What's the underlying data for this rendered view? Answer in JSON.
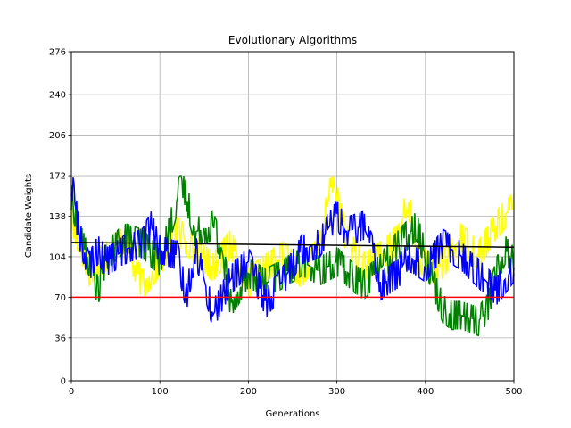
{
  "chart_data": {
    "type": "line",
    "title": "Evolutionary Algorithms",
    "xlabel": "Generations",
    "ylabel": "Candidate Weights",
    "xlim": [
      0,
      500
    ],
    "ylim": [
      0,
      276
    ],
    "x_ticks": [
      0,
      100,
      200,
      300,
      400,
      500
    ],
    "y_ticks": [
      0,
      36,
      70,
      104,
      138,
      172,
      206,
      240,
      276
    ],
    "grid": true,
    "legend": "none",
    "series": [
      {
        "color": "#ffff00",
        "style": "noisy",
        "points": [
          [
            0,
            138
          ],
          [
            20,
            92
          ],
          [
            40,
            105
          ],
          [
            60,
            118
          ],
          [
            80,
            80
          ],
          [
            100,
            100
          ],
          [
            120,
            125
          ],
          [
            140,
            110
          ],
          [
            160,
            95
          ],
          [
            180,
            115
          ],
          [
            200,
            82
          ],
          [
            220,
            95
          ],
          [
            240,
            105
          ],
          [
            260,
            90
          ],
          [
            280,
            110
          ],
          [
            295,
            170
          ],
          [
            310,
            120
          ],
          [
            330,
            95
          ],
          [
            350,
            105
          ],
          [
            370,
            120
          ],
          [
            380,
            155
          ],
          [
            390,
            105
          ],
          [
            410,
            92
          ],
          [
            420,
            98
          ],
          [
            440,
            120
          ],
          [
            460,
            105
          ],
          [
            480,
            130
          ],
          [
            490,
            140
          ],
          [
            500,
            145
          ]
        ]
      },
      {
        "color": "#008000",
        "style": "noisy",
        "points": [
          [
            0,
            155
          ],
          [
            10,
            120
          ],
          [
            20,
            100
          ],
          [
            30,
            75
          ],
          [
            40,
            105
          ],
          [
            60,
            120
          ],
          [
            80,
            115
          ],
          [
            100,
            100
          ],
          [
            110,
            125
          ],
          [
            125,
            168
          ],
          [
            140,
            125
          ],
          [
            160,
            130
          ],
          [
            170,
            110
          ],
          [
            180,
            65
          ],
          [
            200,
            90
          ],
          [
            220,
            82
          ],
          [
            240,
            90
          ],
          [
            260,
            100
          ],
          [
            280,
            92
          ],
          [
            300,
            100
          ],
          [
            310,
            92
          ],
          [
            330,
            80
          ],
          [
            350,
            95
          ],
          [
            370,
            115
          ],
          [
            390,
            130
          ],
          [
            400,
            105
          ],
          [
            410,
            80
          ],
          [
            420,
            60
          ],
          [
            430,
            55
          ],
          [
            440,
            55
          ],
          [
            460,
            50
          ],
          [
            470,
            60
          ],
          [
            480,
            90
          ],
          [
            490,
            110
          ],
          [
            500,
            100
          ]
        ]
      },
      {
        "color": "#0000ff",
        "style": "noisy",
        "points": [
          [
            0,
            168
          ],
          [
            10,
            120
          ],
          [
            20,
            95
          ],
          [
            30,
            110
          ],
          [
            40,
            100
          ],
          [
            60,
            110
          ],
          [
            80,
            115
          ],
          [
            90,
            130
          ],
          [
            100,
            110
          ],
          [
            120,
            105
          ],
          [
            130,
            70
          ],
          [
            140,
            110
          ],
          [
            150,
            85
          ],
          [
            160,
            55
          ],
          [
            180,
            85
          ],
          [
            200,
            100
          ],
          [
            220,
            65
          ],
          [
            240,
            85
          ],
          [
            260,
            110
          ],
          [
            280,
            115
          ],
          [
            300,
            140
          ],
          [
            310,
            125
          ],
          [
            330,
            130
          ],
          [
            340,
            110
          ],
          [
            350,
            80
          ],
          [
            370,
            90
          ],
          [
            380,
            105
          ],
          [
            400,
            95
          ],
          [
            420,
            115
          ],
          [
            440,
            105
          ],
          [
            460,
            90
          ],
          [
            480,
            75
          ],
          [
            490,
            85
          ],
          [
            500,
            95
          ]
        ]
      },
      {
        "color": "#ff0000",
        "style": "straight",
        "points": [
          [
            0,
            70
          ],
          [
            500,
            70
          ]
        ]
      },
      {
        "color": "#000000",
        "style": "straight",
        "points": [
          [
            0,
            116
          ],
          [
            500,
            112
          ]
        ]
      }
    ]
  }
}
